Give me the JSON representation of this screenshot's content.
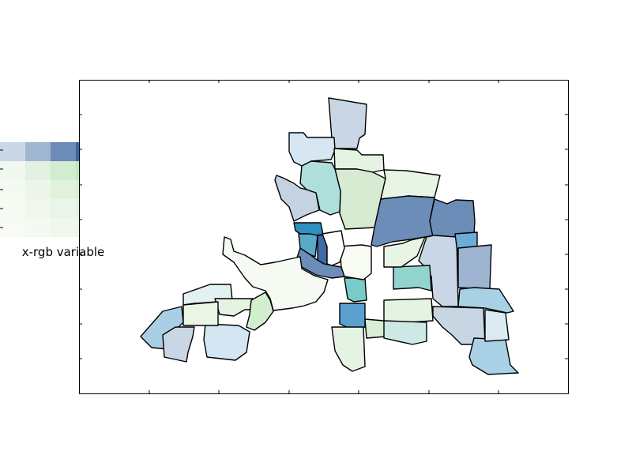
{
  "legend": {
    "caption": "x-rgb variable",
    "grid": [
      [
        "#c9d7e6",
        "#9fb5d0",
        "#6b8cb8",
        "#3a66a0",
        "#0f4585"
      ],
      [
        "#f1f8f1",
        "#e2f1e2",
        "#d1eccf",
        "#c2e6c2",
        "#b3dfb2"
      ],
      [
        "#f4f9f1",
        "#ecf5ea",
        "#e0f2dc",
        "#d5efd1",
        "#c9ecc6"
      ],
      [
        "#f5faf2",
        "#f1f7ee",
        "#e9f5e6",
        "#e2f2de",
        "#d9efd3"
      ],
      [
        "#f7fbf4",
        "#f4f9f1",
        "#f0f7ec",
        "#ebf5e7",
        "#e6f3e1"
      ]
    ]
  },
  "map": {
    "border_color": "#000000",
    "regions": [
      {
        "name": "region-a",
        "fill": "#c9d6e3"
      },
      {
        "name": "region-b",
        "fill": "#d6e6f2"
      },
      {
        "name": "region-c",
        "fill": "#e5f4e2"
      },
      {
        "name": "region-d",
        "fill": "#d6ebd1"
      },
      {
        "name": "region-e",
        "fill": "#c5d2e2"
      },
      {
        "name": "region-f",
        "fill": "#aedfdb"
      },
      {
        "name": "region-g",
        "fill": "#e8f5e4"
      },
      {
        "name": "region-h",
        "fill": "#6b8db8"
      },
      {
        "name": "region-i",
        "fill": "#6b8db8"
      },
      {
        "name": "region-j",
        "fill": "#2f8fc2"
      },
      {
        "name": "region-k",
        "fill": "#5aa9c8"
      },
      {
        "name": "region-l",
        "fill": "#3e6ca6"
      },
      {
        "name": "region-m",
        "fill": "#6b8db8"
      },
      {
        "name": "region-n",
        "fill": "#f5faf2"
      },
      {
        "name": "region-o",
        "fill": "#c9d6e5"
      },
      {
        "name": "region-p",
        "fill": "#6aaed8"
      },
      {
        "name": "region-q",
        "fill": "#9fb4d0"
      },
      {
        "name": "region-r",
        "fill": "#78cbc6"
      },
      {
        "name": "region-s",
        "fill": "#92d4cd"
      },
      {
        "name": "region-t",
        "fill": "#5aa1d0"
      },
      {
        "name": "region-u",
        "fill": "#e4f3e2"
      },
      {
        "name": "region-v",
        "fill": "#d9eed4"
      },
      {
        "name": "region-w",
        "fill": "#cce9e5"
      },
      {
        "name": "region-x",
        "fill": "#c8d6e4"
      },
      {
        "name": "region-y",
        "fill": "#a9d1e6"
      },
      {
        "name": "region-z",
        "fill": "#dceaf4"
      },
      {
        "name": "region-aa",
        "fill": "#f7fbf4"
      },
      {
        "name": "region-ab",
        "fill": "#e2f2f2"
      },
      {
        "name": "region-ac",
        "fill": "#e5f4e2"
      },
      {
        "name": "region-ad",
        "fill": "#a9cfe6"
      },
      {
        "name": "region-ae",
        "fill": "#c9d6e3"
      },
      {
        "name": "region-af",
        "fill": "#d4e6f2"
      },
      {
        "name": "region-ag",
        "fill": "#e9f6e6"
      },
      {
        "name": "region-ah",
        "fill": "#a9d1e6"
      },
      {
        "name": "region-ai",
        "fill": "#ffffff"
      },
      {
        "name": "region-aj",
        "fill": "#e8f5e5"
      },
      {
        "name": "region-ak",
        "fill": "#d3eecf"
      },
      {
        "name": "region-al",
        "fill": "#e4f3e3"
      }
    ]
  }
}
